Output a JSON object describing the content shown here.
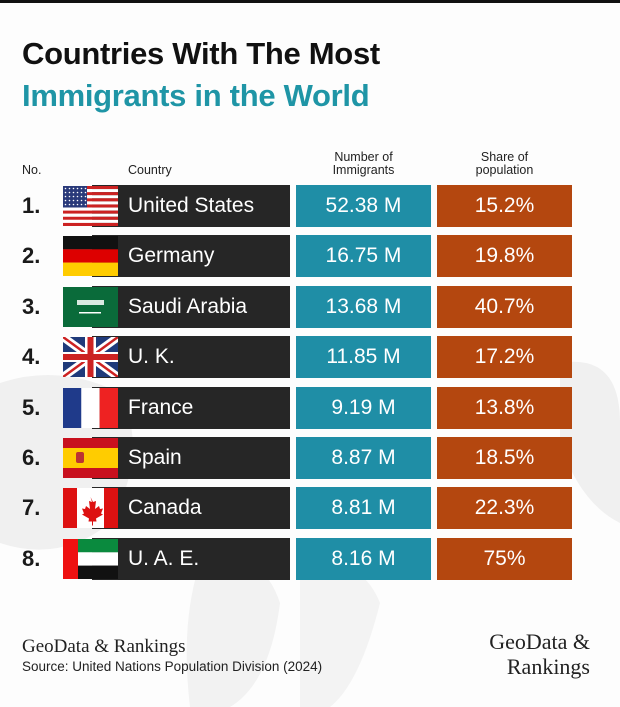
{
  "title_line1": "Countries With The Most",
  "title_line2": "Immigrants in the World",
  "colors": {
    "title_accent": "#1f95a6",
    "country_bar": "#262626",
    "immigrants_bar": "#1f8ea6",
    "share_bar": "#b4470f"
  },
  "chart_data": {
    "type": "table",
    "columns": [
      "No.",
      "Country",
      "Number of Immigrants",
      "Share of population"
    ],
    "rows": [
      {
        "rank": "1.",
        "country": "United States",
        "flag": "us-flag-icon",
        "immigrants": "52.38 M",
        "share": "15.2%"
      },
      {
        "rank": "2.",
        "country": "Germany",
        "flag": "germany-flag-icon",
        "immigrants": "16.75 M",
        "share": "19.8%"
      },
      {
        "rank": "3.",
        "country": "Saudi Arabia",
        "flag": "saudi-arabia-flag-icon",
        "immigrants": "13.68 M",
        "share": "40.7%"
      },
      {
        "rank": "4.",
        "country": "U. K.",
        "flag": "uk-flag-icon",
        "immigrants": "11.85 M",
        "share": "17.2%"
      },
      {
        "rank": "5.",
        "country": "France",
        "flag": "france-flag-icon",
        "immigrants": "9.19 M",
        "share": "13.8%"
      },
      {
        "rank": "6.",
        "country": "Spain",
        "flag": "spain-flag-icon",
        "immigrants": "8.87 M",
        "share": "18.5%"
      },
      {
        "rank": "7.",
        "country": "Canada",
        "flag": "canada-flag-icon",
        "immigrants": "8.81 M",
        "share": "22.3%"
      },
      {
        "rank": "8.",
        "country": "U. A. E.",
        "flag": "uae-flag-icon",
        "immigrants": "8.16 M",
        "share": "75%"
      }
    ]
  },
  "headers": {
    "no": "No.",
    "country": "Country",
    "immigrants_1": "Number of",
    "immigrants_2": "Immigrants",
    "share_1": "Share of",
    "share_2": "population"
  },
  "footer": {
    "brand": "GeoData & Rankings",
    "source": "Source: United Nations Population Division (2024)",
    "logo_line1": "GeoData &",
    "logo_line2": "Rankings"
  }
}
